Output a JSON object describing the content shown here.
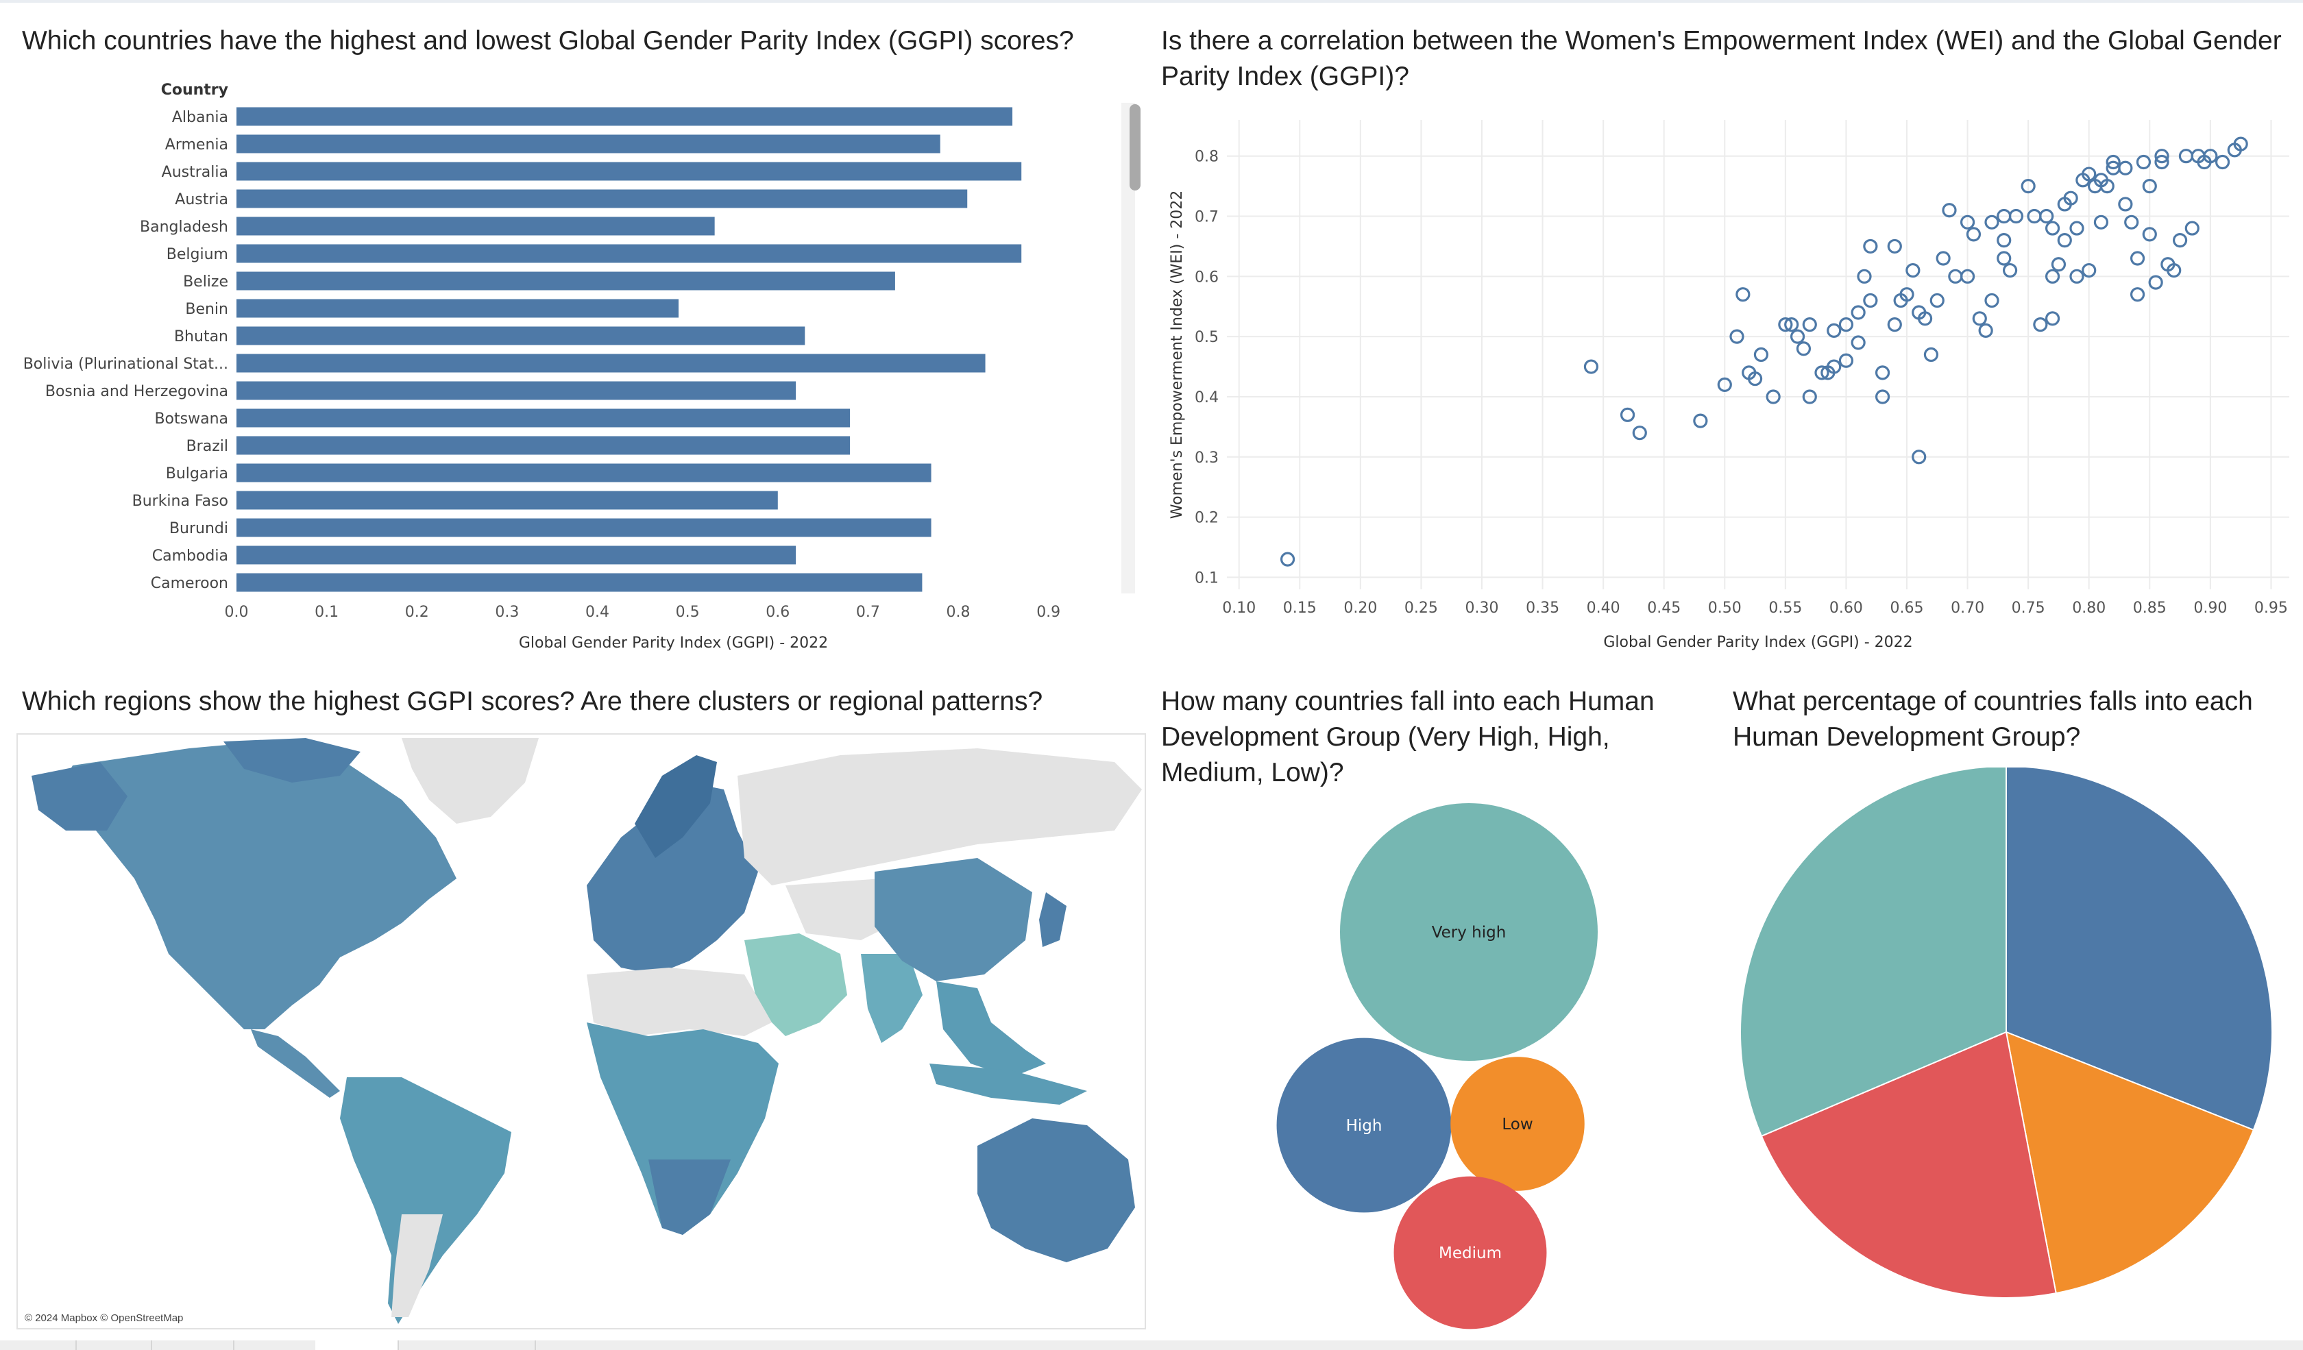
{
  "panels": {
    "bar_title": "Which countries have the highest and lowest Global Gender Parity Index (GGPI) scores?",
    "scatter_title": "Is there a correlation between the Women's Empowerment Index (WEI) and the Global Gender Parity Index (GGPI)?",
    "map_title": "Which regions show the highest GGPI scores? Are there clusters or regional patterns?",
    "bubble_title": "How many countries fall into each Human Development Group (Very High, High, Medium, Low)?",
    "pie_title": "What percentage of countries falls into each Human Development Group?"
  },
  "map": {
    "attribution": "© 2024 Mapbox © OpenStreetMap",
    "colors": {
      "land_no_data": "#e3e3e3",
      "ocean": "#ffffff",
      "high": "#4f7fa8",
      "mid": "#5b9cb5",
      "low": "#8ecbc2"
    }
  },
  "colors": {
    "bar": "#4e79a7",
    "very_high": "#76b7b2",
    "high": "#4e79a7",
    "low": "#f28e2b",
    "medium": "#e15759",
    "grid": "#ececec"
  },
  "chart_data": [
    {
      "type": "bar",
      "orientation": "horizontal",
      "header": "Country",
      "categories": [
        "Albania",
        "Armenia",
        "Australia",
        "Austria",
        "Bangladesh",
        "Belgium",
        "Belize",
        "Benin",
        "Bhutan",
        "Bolivia (Plurinational Stat...",
        "Bosnia and Herzegovina",
        "Botswana",
        "Brazil",
        "Bulgaria",
        "Burkina Faso",
        "Burundi",
        "Cambodia",
        "Cameroon"
      ],
      "values": [
        0.86,
        0.78,
        0.87,
        0.81,
        0.53,
        0.87,
        0.73,
        0.49,
        0.63,
        0.83,
        0.62,
        0.68,
        0.68,
        0.77,
        0.6,
        0.77,
        0.62,
        0.76
      ],
      "xlabel": "Global Gender Parity Index (GGPI) - 2022",
      "xlim": [
        0,
        0.98
      ],
      "xticks": [
        "0.0",
        "0.1",
        "0.2",
        "0.3",
        "0.4",
        "0.5",
        "0.6",
        "0.7",
        "0.8",
        "0.9"
      ]
    },
    {
      "type": "scatter",
      "xlabel": "Global Gender Parity Index (GGPI) - 2022",
      "ylabel": "Women's Empowerment Index (WEI) - 2022",
      "xlim": [
        0.09,
        0.965
      ],
      "ylim": [
        0.08,
        0.86
      ],
      "xticks": [
        "0.10",
        "0.15",
        "0.20",
        "0.25",
        "0.30",
        "0.35",
        "0.40",
        "0.45",
        "0.50",
        "0.55",
        "0.60",
        "0.65",
        "0.70",
        "0.75",
        "0.80",
        "0.85",
        "0.90",
        "0.95"
      ],
      "yticks": [
        "0.1",
        "0.2",
        "0.3",
        "0.4",
        "0.5",
        "0.6",
        "0.7",
        "0.8"
      ],
      "points": [
        [
          0.14,
          0.13
        ],
        [
          0.39,
          0.45
        ],
        [
          0.42,
          0.37
        ],
        [
          0.43,
          0.34
        ],
        [
          0.48,
          0.36
        ],
        [
          0.5,
          0.42
        ],
        [
          0.51,
          0.5
        ],
        [
          0.515,
          0.57
        ],
        [
          0.52,
          0.44
        ],
        [
          0.525,
          0.43
        ],
        [
          0.53,
          0.47
        ],
        [
          0.54,
          0.4
        ],
        [
          0.55,
          0.52
        ],
        [
          0.555,
          0.52
        ],
        [
          0.56,
          0.5
        ],
        [
          0.565,
          0.48
        ],
        [
          0.57,
          0.4
        ],
        [
          0.57,
          0.52
        ],
        [
          0.58,
          0.44
        ],
        [
          0.585,
          0.44
        ],
        [
          0.59,
          0.45
        ],
        [
          0.59,
          0.51
        ],
        [
          0.6,
          0.52
        ],
        [
          0.6,
          0.46
        ],
        [
          0.61,
          0.49
        ],
        [
          0.61,
          0.54
        ],
        [
          0.615,
          0.6
        ],
        [
          0.62,
          0.56
        ],
        [
          0.62,
          0.65
        ],
        [
          0.63,
          0.44
        ],
        [
          0.63,
          0.4
        ],
        [
          0.64,
          0.52
        ],
        [
          0.64,
          0.65
        ],
        [
          0.645,
          0.56
        ],
        [
          0.65,
          0.57
        ],
        [
          0.655,
          0.61
        ],
        [
          0.66,
          0.54
        ],
        [
          0.66,
          0.3
        ],
        [
          0.665,
          0.53
        ],
        [
          0.67,
          0.47
        ],
        [
          0.675,
          0.56
        ],
        [
          0.68,
          0.63
        ],
        [
          0.685,
          0.71
        ],
        [
          0.69,
          0.6
        ],
        [
          0.7,
          0.6
        ],
        [
          0.7,
          0.69
        ],
        [
          0.705,
          0.67
        ],
        [
          0.71,
          0.53
        ],
        [
          0.715,
          0.51
        ],
        [
          0.72,
          0.56
        ],
        [
          0.72,
          0.69
        ],
        [
          0.73,
          0.63
        ],
        [
          0.73,
          0.66
        ],
        [
          0.735,
          0.61
        ],
        [
          0.74,
          0.7
        ],
        [
          0.75,
          0.75
        ],
        [
          0.755,
          0.7
        ],
        [
          0.76,
          0.52
        ],
        [
          0.765,
          0.7
        ],
        [
          0.77,
          0.53
        ],
        [
          0.77,
          0.6
        ],
        [
          0.775,
          0.62
        ],
        [
          0.78,
          0.66
        ],
        [
          0.78,
          0.72
        ],
        [
          0.785,
          0.73
        ],
        [
          0.79,
          0.68
        ],
        [
          0.795,
          0.76
        ],
        [
          0.8,
          0.77
        ],
        [
          0.8,
          0.61
        ],
        [
          0.805,
          0.75
        ],
        [
          0.81,
          0.69
        ],
        [
          0.815,
          0.75
        ],
        [
          0.82,
          0.78
        ],
        [
          0.83,
          0.78
        ],
        [
          0.83,
          0.72
        ],
        [
          0.835,
          0.69
        ],
        [
          0.84,
          0.63
        ],
        [
          0.84,
          0.57
        ],
        [
          0.845,
          0.79
        ],
        [
          0.85,
          0.75
        ],
        [
          0.85,
          0.67
        ],
        [
          0.855,
          0.59
        ],
        [
          0.86,
          0.79
        ],
        [
          0.865,
          0.62
        ],
        [
          0.87,
          0.61
        ],
        [
          0.875,
          0.66
        ],
        [
          0.88,
          0.8
        ],
        [
          0.885,
          0.68
        ],
        [
          0.89,
          0.8
        ],
        [
          0.895,
          0.79
        ],
        [
          0.9,
          0.8
        ],
        [
          0.91,
          0.79
        ],
        [
          0.92,
          0.81
        ],
        [
          0.925,
          0.82
        ],
        [
          0.77,
          0.68
        ],
        [
          0.79,
          0.6
        ],
        [
          0.81,
          0.76
        ],
        [
          0.82,
          0.79
        ],
        [
          0.86,
          0.8
        ],
        [
          0.73,
          0.7
        ]
      ]
    },
    {
      "type": "bubble",
      "items": [
        {
          "label": "Very high",
          "value": 37,
          "color": "#76b7b2"
        },
        {
          "label": "High",
          "value": 17,
          "color": "#4e79a7"
        },
        {
          "label": "Low",
          "value": 10,
          "color": "#f28e2b"
        },
        {
          "label": "Medium",
          "value": 13,
          "color": "#e15759"
        }
      ]
    },
    {
      "type": "pie",
      "slices": [
        {
          "label": "High",
          "value": 31.0,
          "color": "#4e79a7"
        },
        {
          "label": "Low",
          "value": 16.0,
          "color": "#f28e2b"
        },
        {
          "label": "Medium",
          "value": 21.6,
          "color": "#e15759"
        },
        {
          "label": "Very high",
          "value": 31.4,
          "color": "#76b7b2"
        }
      ]
    }
  ]
}
